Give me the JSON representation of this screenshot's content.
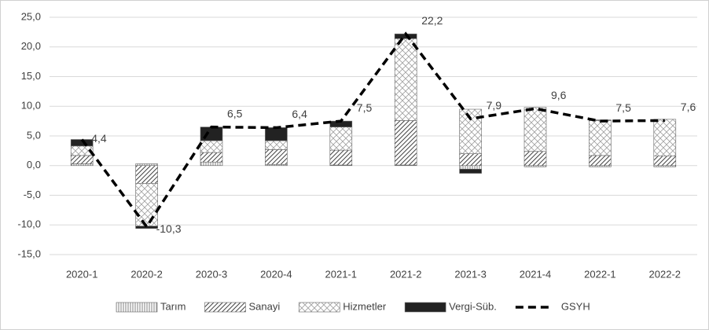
{
  "chart_data": {
    "type": "bar",
    "categories": [
      "2020-1",
      "2020-2",
      "2020-3",
      "2020-4",
      "2021-1",
      "2021-2",
      "2021-3",
      "2021-4",
      "2022-1",
      "2022-2"
    ],
    "ylim": [
      -15,
      25
    ],
    "yticks": [
      {
        "value": -15,
        "label": "-15,0"
      },
      {
        "value": -10,
        "label": "-10,0"
      },
      {
        "value": -5,
        "label": "-5,0"
      },
      {
        "value": 0,
        "label": "0,0"
      },
      {
        "value": 5,
        "label": "5,0"
      },
      {
        "value": 10,
        "label": "10,0"
      },
      {
        "value": 15,
        "label": "15,0"
      },
      {
        "value": 20,
        "label": "20,0"
      },
      {
        "value": 25,
        "label": "25,0"
      }
    ],
    "grid": true,
    "legend": "bottom",
    "series": [
      {
        "name": "Tarım",
        "color": "#808080",
        "pattern": "vertical",
        "values": [
          0.3,
          0.3,
          0.6,
          0.2,
          0.1,
          0.1,
          -0.6,
          -0.2,
          -0.2,
          -0.2
        ]
      },
      {
        "name": "Sanayi",
        "color": "#404040",
        "pattern": "diagonal",
        "values": [
          1.4,
          -3.0,
          1.6,
          2.5,
          2.5,
          7.5,
          2.0,
          2.4,
          1.7,
          1.6
        ]
      },
      {
        "name": "Hizmetler",
        "color": "#808080",
        "pattern": "cross",
        "values": [
          1.6,
          -7.2,
          2.0,
          1.5,
          3.9,
          13.8,
          7.5,
          7.4,
          5.9,
          6.2
        ]
      },
      {
        "name": "Vergi-Süb.",
        "color": "#222222",
        "pattern": "solid",
        "values": [
          1.1,
          -0.4,
          2.3,
          2.2,
          1.0,
          0.8,
          -0.7,
          0.0,
          0.1,
          0.0
        ]
      },
      {
        "name": "GSYH",
        "type": "line",
        "color": "#000000",
        "dashed": true,
        "values": [
          4.4,
          -10.3,
          6.5,
          6.4,
          7.5,
          22.2,
          7.9,
          9.6,
          7.5,
          7.6
        ],
        "value_labels": [
          "4,4",
          "-10,3",
          "6,5",
          "6,4",
          "7,5",
          "22,2",
          "7,9",
          "9,6",
          "7,5",
          "7,6"
        ]
      }
    ]
  }
}
